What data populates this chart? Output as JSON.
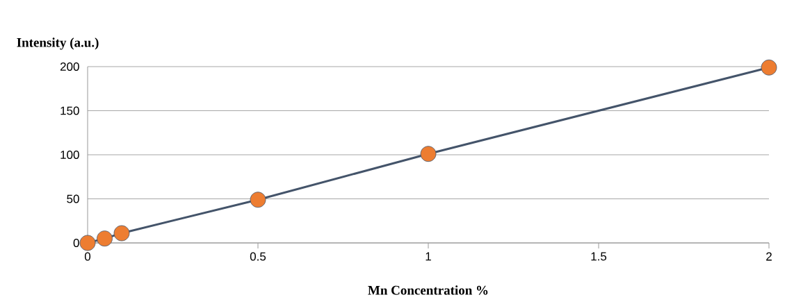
{
  "chart_data": {
    "type": "line",
    "xlabel": "Mn Concentration %",
    "ylabel": "Intensity (a.u.)",
    "x": [
      0,
      0.05,
      0.1,
      0.5,
      1,
      2
    ],
    "series": [
      {
        "color": "#44546a",
        "colors": [
          "#ed7d31",
          "#ed7d31",
          "#ed7d31",
          "#ed7d31",
          "#ed7d31",
          "#ed7d31"
        ],
        "values": [
          0,
          5,
          11,
          49,
          101,
          199
        ]
      }
    ],
    "xlim": [
      0,
      2
    ],
    "xticks": [
      0,
      0.5,
      1,
      1.5,
      2
    ],
    "ylim": [
      0,
      200
    ],
    "yticks": [
      0,
      50,
      100,
      150,
      200
    ],
    "grid": "y",
    "legend": false,
    "marker": "circle",
    "line_style": "solid"
  }
}
